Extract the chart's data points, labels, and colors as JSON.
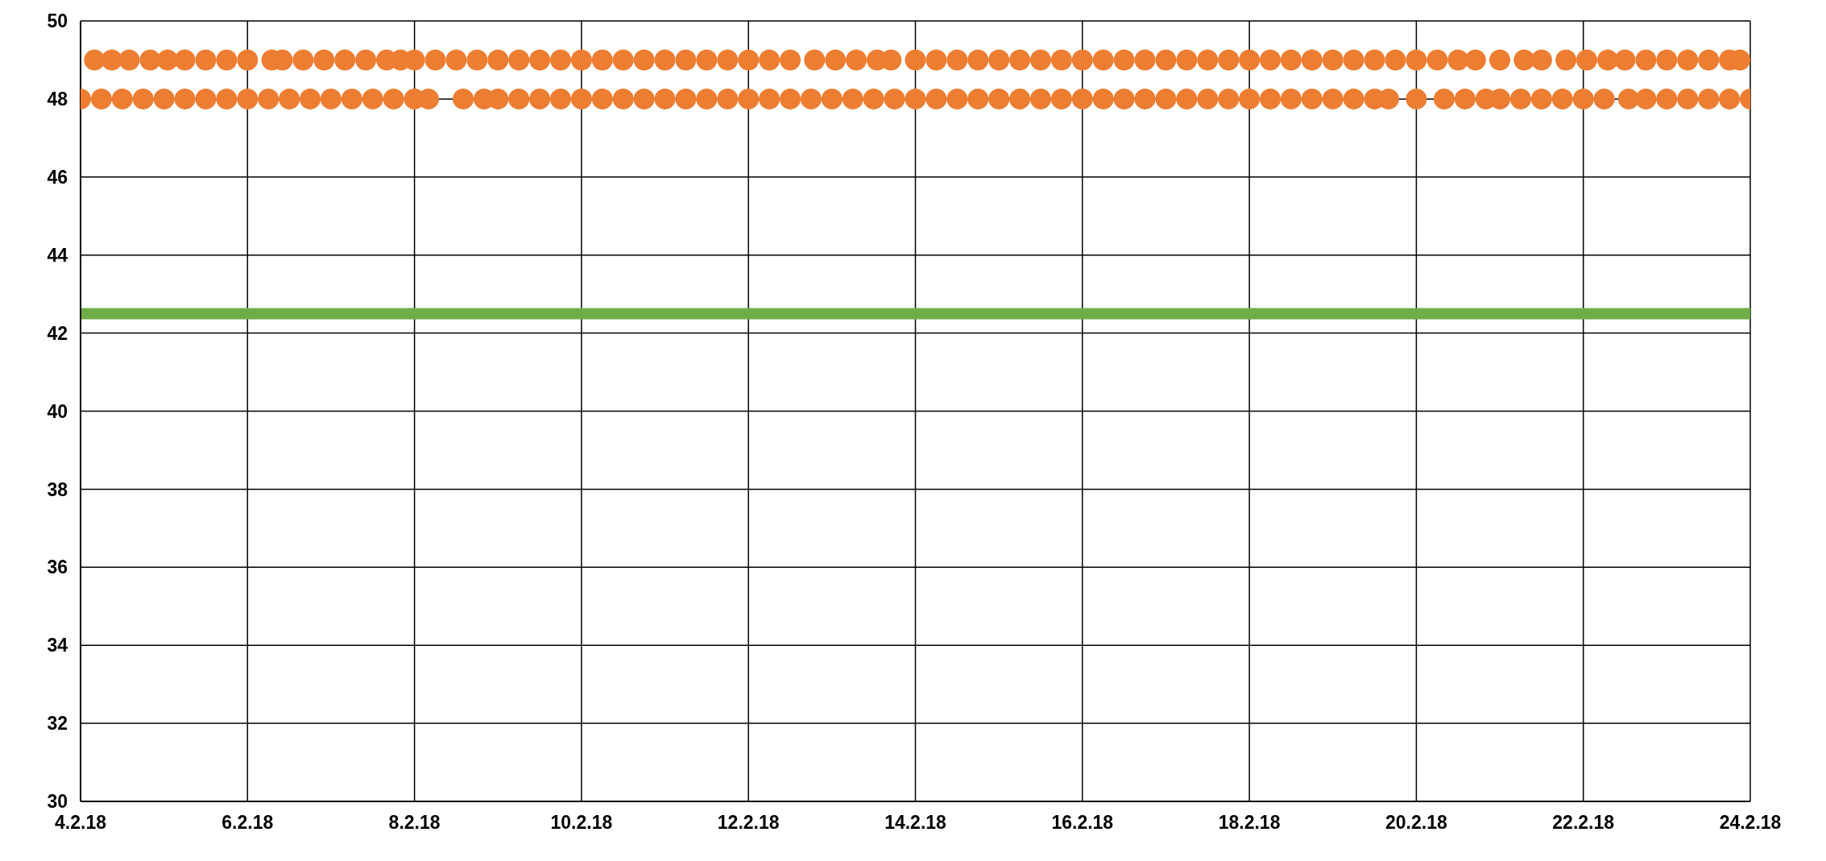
{
  "chart_data": {
    "type": "scatter",
    "marker": "circle",
    "grid": true,
    "legend": false,
    "xlim": [
      "--02-04",
      "--02-24"
    ],
    "xticks": [
      {
        "value": "--02-04",
        "label": "4.2.18"
      },
      {
        "value": "--02-06",
        "label": "6.2.18"
      },
      {
        "value": "--02-08",
        "label": "8.2.18"
      },
      {
        "value": "--02-10",
        "label": "10.2.18"
      },
      {
        "value": "--02-12",
        "label": "12.2.18"
      },
      {
        "value": "--02-14",
        "label": "14.2.18"
      },
      {
        "value": "--02-16",
        "label": "16.2.18"
      },
      {
        "value": "--02-18",
        "label": "18.2.18"
      },
      {
        "value": "--02-20",
        "label": "20.2.18"
      },
      {
        "value": "--02-22",
        "label": "22.2.18"
      },
      {
        "value": "--02-24",
        "label": "24.2.18"
      }
    ],
    "ylim": [
      30,
      50
    ],
    "yticks": [
      30,
      32,
      34,
      36,
      38,
      40,
      42,
      44,
      46,
      48,
      50
    ],
    "ref_lines": [
      {
        "axis": "y",
        "value": 42.5,
        "color": "#70ad47"
      }
    ],
    "series": [
      {
        "color": "#ed7d31",
        "x": [
          "--02-04T00:00",
          "--02-04T06:00",
          "--02-04T12:00",
          "--02-04T18:00",
          "--02-05T00:00",
          "--02-05T06:00",
          "--02-05T12:00",
          "--02-05T18:00",
          "--02-06T00:00",
          "--02-06T06:00",
          "--02-06T12:00",
          "--02-06T18:00",
          "--02-07T00:00",
          "--02-07T06:00",
          "--02-07T12:00",
          "--02-07T18:00",
          "--02-08T00:00",
          "--02-08T04:00",
          "--02-08T14:00",
          "--02-08T20:00",
          "--02-09T00:00",
          "--02-09T06:00",
          "--02-09T12:00",
          "--02-09T18:00",
          "--02-10T00:00",
          "--02-10T06:00",
          "--02-10T12:00",
          "--02-10T18:00",
          "--02-11T00:00",
          "--02-11T06:00",
          "--02-11T12:00",
          "--02-11T18:00",
          "--02-12T00:00",
          "--02-12T06:00",
          "--02-12T12:00",
          "--02-12T18:00",
          "--02-13T00:00",
          "--02-13T06:00",
          "--02-13T12:00",
          "--02-13T18:00",
          "--02-14T00:00",
          "--02-14T06:00",
          "--02-14T12:00",
          "--02-14T18:00",
          "--02-15T00:00",
          "--02-15T06:00",
          "--02-15T12:00",
          "--02-15T18:00",
          "--02-16T00:00",
          "--02-16T06:00",
          "--02-16T12:00",
          "--02-16T18:00",
          "--02-17T00:00",
          "--02-17T06:00",
          "--02-17T12:00",
          "--02-17T18:00",
          "--02-18T00:00",
          "--02-18T06:00",
          "--02-18T12:00",
          "--02-18T18:00",
          "--02-19T00:00",
          "--02-19T06:00",
          "--02-19T12:00",
          "--02-19T16:00",
          "--02-20T00:00",
          "--02-20T08:00",
          "--02-20T14:00",
          "--02-20T20:00",
          "--02-21T00:00",
          "--02-21T06:00",
          "--02-21T12:00",
          "--02-21T18:00",
          "--02-22T00:00",
          "--02-22T06:00",
          "--02-22T13:00",
          "--02-22T18:00",
          "--02-23T00:00",
          "--02-23T06:00",
          "--02-23T12:00",
          "--02-23T18:00",
          "--02-24T00:00"
        ],
        "values": [
          48,
          48,
          48,
          48,
          48,
          48,
          48,
          48,
          48,
          48,
          48,
          48,
          48,
          48,
          48,
          48,
          48,
          48,
          48,
          48,
          48,
          48,
          48,
          48,
          48,
          48,
          48,
          48,
          48,
          48,
          48,
          48,
          48,
          48,
          48,
          48,
          48,
          48,
          48,
          48,
          48,
          48,
          48,
          48,
          48,
          48,
          48,
          48,
          48,
          48,
          48,
          48,
          48,
          48,
          48,
          48,
          48,
          48,
          48,
          48,
          48,
          48,
          48,
          48,
          48,
          48,
          48,
          48,
          48,
          48,
          48,
          48,
          48,
          48,
          48,
          48,
          48,
          48,
          48,
          48,
          48
        ]
      },
      {
        "color": "#ed7d31",
        "x": [
          "--02-04T04:00",
          "--02-04T09:00",
          "--02-04T14:00",
          "--02-04T20:00",
          "--02-05T01:00",
          "--02-05T06:00",
          "--02-05T12:00",
          "--02-05T18:00",
          "--02-06T00:00",
          "--02-06T07:00",
          "--02-06T10:00",
          "--02-06T16:00",
          "--02-06T22:00",
          "--02-07T04:00",
          "--02-07T10:00",
          "--02-07T16:00",
          "--02-07T20:00",
          "--02-08T00:00",
          "--02-08T06:00",
          "--02-08T12:00",
          "--02-08T18:00",
          "--02-09T00:00",
          "--02-09T06:00",
          "--02-09T12:00",
          "--02-09T18:00",
          "--02-10T00:00",
          "--02-10T06:00",
          "--02-10T12:00",
          "--02-10T18:00",
          "--02-11T00:00",
          "--02-11T06:00",
          "--02-11T12:00",
          "--02-11T18:00",
          "--02-12T00:00",
          "--02-12T06:00",
          "--02-12T12:00",
          "--02-12T19:00",
          "--02-13T01:00",
          "--02-13T07:00",
          "--02-13T13:00",
          "--02-13T17:00",
          "--02-14T00:00",
          "--02-14T06:00",
          "--02-14T12:00",
          "--02-14T18:00",
          "--02-15T00:00",
          "--02-15T06:00",
          "--02-15T12:00",
          "--02-15T18:00",
          "--02-16T00:00",
          "--02-16T06:00",
          "--02-16T12:00",
          "--02-16T18:00",
          "--02-17T00:00",
          "--02-17T06:00",
          "--02-17T12:00",
          "--02-17T18:00",
          "--02-18T00:00",
          "--02-18T06:00",
          "--02-18T12:00",
          "--02-18T18:00",
          "--02-19T00:00",
          "--02-19T06:00",
          "--02-19T12:00",
          "--02-19T18:00",
          "--02-20T00:00",
          "--02-20T06:00",
          "--02-20T12:00",
          "--02-20T17:00",
          "--02-21T00:00",
          "--02-21T07:00",
          "--02-21T12:00",
          "--02-21T19:00",
          "--02-22T01:00",
          "--02-22T07:00",
          "--02-22T12:00",
          "--02-22T18:00",
          "--02-23T00:00",
          "--02-23T06:00",
          "--02-23T12:00",
          "--02-23T18:00",
          "--02-23T21:00"
        ],
        "values": [
          49,
          49,
          49,
          49,
          49,
          49,
          49,
          49,
          49,
          49,
          49,
          49,
          49,
          49,
          49,
          49,
          49,
          49,
          49,
          49,
          49,
          49,
          49,
          49,
          49,
          49,
          49,
          49,
          49,
          49,
          49,
          49,
          49,
          49,
          49,
          49,
          49,
          49,
          49,
          49,
          49,
          49,
          49,
          49,
          49,
          49,
          49,
          49,
          49,
          49,
          49,
          49,
          49,
          49,
          49,
          49,
          49,
          49,
          49,
          49,
          49,
          49,
          49,
          49,
          49,
          49,
          49,
          49,
          49,
          49,
          49,
          49,
          49,
          49,
          49,
          49,
          49,
          49,
          49,
          49,
          49,
          49
        ]
      }
    ]
  }
}
